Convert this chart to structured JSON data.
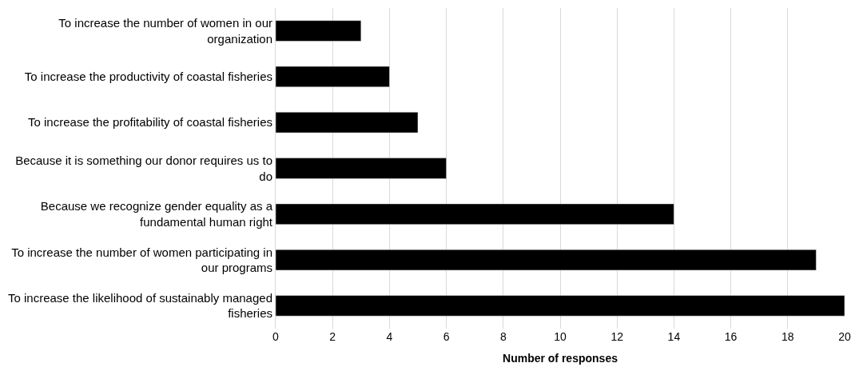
{
  "chart_data": {
    "type": "bar",
    "orientation": "horizontal",
    "xlabel": "Number of responses",
    "categories": [
      "To increase the number of women in our organization",
      "To increase the productivity of coastal fisheries",
      "To increase the profitability of coastal fisheries",
      "Because it is something our donor requires us to do",
      "Because we recognize gender equality as a fundamental human right",
      "To increase the number of women participating in our programs",
      "To increase the likelihood of sustainably managed fisheries"
    ],
    "values": [
      3,
      4,
      5,
      6,
      14,
      19,
      20
    ],
    "color": "#000000",
    "xlim": [
      0,
      20
    ],
    "xticks": [
      0,
      2,
      4,
      6,
      8,
      10,
      12,
      14,
      16,
      18,
      20
    ],
    "grid": "x",
    "legend": false
  }
}
